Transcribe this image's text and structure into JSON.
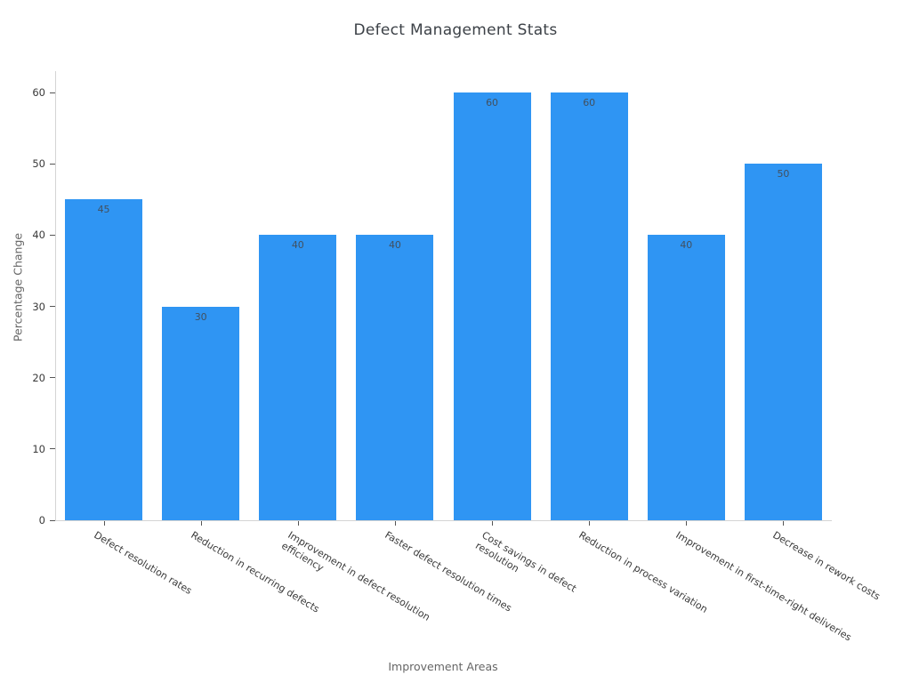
{
  "chart_data": {
    "type": "bar",
    "title": "Defect Management Stats",
    "xlabel": "Improvement Areas",
    "ylabel": "Percentage Change",
    "categories": [
      "Defect resolution rates",
      "Reduction in recurring defects",
      "Improvement in defect resolution efficiency",
      "Faster defect resolution times",
      "Cost savings in defect resolution",
      "Reduction in process variation",
      "Improvement in first-time-right deliveries",
      "Decrease in rework costs"
    ],
    "category_display_lines": [
      [
        "Defect resolution rates"
      ],
      [
        "Reduction in recurring defects"
      ],
      [
        "Improvement in defect resolution",
        "efficiency"
      ],
      [
        "Faster defect resolution times"
      ],
      [
        "Cost savings in defect",
        "resolution"
      ],
      [
        "Reduction in process variation"
      ],
      [
        "Improvement in first-time-right deliveries"
      ],
      [
        "Decrease in rework costs"
      ]
    ],
    "values": [
      45,
      30,
      40,
      40,
      60,
      60,
      40,
      50
    ],
    "bar_labels": [
      "45",
      "30",
      "40",
      "40",
      "60",
      "60",
      "40",
      "50"
    ],
    "yticks": [
      0,
      10,
      20,
      30,
      40,
      50,
      60
    ],
    "ylim": [
      0,
      63
    ],
    "tick_angle_deg": 31,
    "grid": false,
    "legend": false,
    "bar_color": "#2F95F3",
    "value_label_color": "#42505f",
    "tick_label_color": "#3a3a3a",
    "tick_mark_color": "#555555",
    "axis_line_color": "#d4d4d4",
    "title_color": "#3c4147",
    "axis_title_color": "#666666",
    "background_color": "#ffffff"
  }
}
